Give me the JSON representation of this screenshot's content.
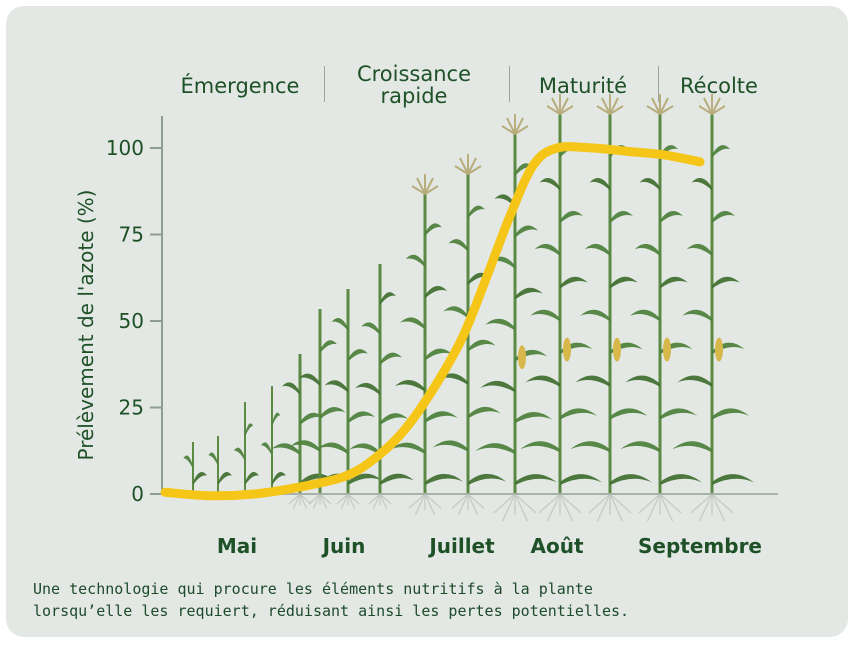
{
  "stages": [
    "Émergence",
    "Croissance\nrapide",
    "Maturité",
    "Récolte"
  ],
  "months": [
    "Mai",
    "Juin",
    "Juillet",
    "Août",
    "Septembre"
  ],
  "caption": "Une technologie qui procure les éléments nutritifs à la plante\nlorsqu’elle les requiert, réduisant ainsi les pertes potentielles.",
  "colors": {
    "curve": "#f5c518",
    "text": "#1e5128",
    "background": "#e3e8e4",
    "leaf": "#4c7f3a"
  },
  "chart_data": {
    "type": "line",
    "ylabel": "Prélèvement de l'azote (%)",
    "yticks": [
      0,
      25,
      50,
      75,
      100
    ],
    "ylim": [
      0,
      110
    ],
    "x_categories": [
      "Mai",
      "Juin",
      "Juillet",
      "Août",
      "Septembre"
    ],
    "series": [
      {
        "x": [
          0,
          0.25,
          0.5,
          0.75,
          1.0,
          1.25,
          1.5,
          1.75,
          2.0,
          2.25,
          2.5,
          2.75,
          3.0,
          3.25,
          3.5,
          3.75,
          4.0
        ],
        "values": [
          0.5,
          -0.5,
          0,
          2,
          5,
          10,
          18,
          30,
          45,
          62,
          80,
          95,
          100,
          100,
          99,
          98,
          96
        ]
      }
    ],
    "plants": [
      {
        "x": 193,
        "h": 52,
        "stage": 0
      },
      {
        "x": 218,
        "h": 58,
        "stage": 0
      },
      {
        "x": 245,
        "h": 92,
        "stage": 0
      },
      {
        "x": 272,
        "h": 108,
        "stage": 0
      },
      {
        "x": 300,
        "h": 140,
        "stage": 1
      },
      {
        "x": 320,
        "h": 185,
        "stage": 1
      },
      {
        "x": 348,
        "h": 205,
        "stage": 1
      },
      {
        "x": 380,
        "h": 230,
        "stage": 1
      },
      {
        "x": 425,
        "h": 300,
        "stage": 2
      },
      {
        "x": 468,
        "h": 320,
        "stage": 2
      },
      {
        "x": 515,
        "h": 360,
        "stage": 3
      },
      {
        "x": 560,
        "h": 380,
        "stage": 3
      },
      {
        "x": 610,
        "h": 380,
        "stage": 3
      },
      {
        "x": 660,
        "h": 380,
        "stage": 3
      },
      {
        "x": 712,
        "h": 380,
        "stage": 3
      }
    ]
  }
}
